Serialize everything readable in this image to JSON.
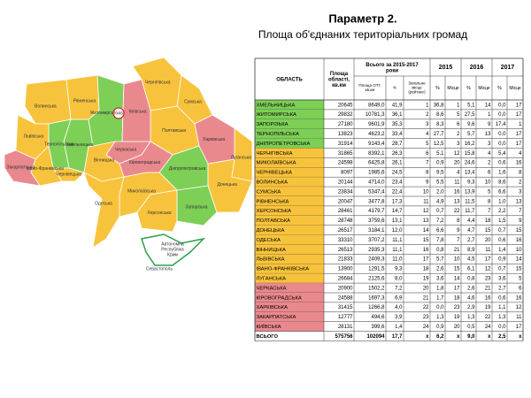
{
  "header": {
    "title": "Параметр 2.",
    "subtitle": "Площа об'єднаних територіальних громад"
  },
  "table": {
    "head": {
      "region": "ОБЛАСТЬ",
      "area": "Площа області, кв.км",
      "total": "Всього за 2015-2017 роки",
      "otg": "Площа ОТГ, кв.км",
      "pct": "%",
      "rank": "Загальне місце (рейтинг)",
      "years": [
        "2015",
        "2016",
        "2017"
      ],
      "year_pct": "%",
      "year_place": "Місце"
    },
    "rows": [
      {
        "color": "#7dcf56",
        "cells": [
          "ХМЕЛЬНИЦЬКА",
          "20645",
          "8649,0",
          "41,9",
          "1",
          "36,8",
          "1",
          "5,1",
          "14",
          "0,0",
          "17"
        ]
      },
      {
        "color": "#7dcf56",
        "cells": [
          "ЖИТОМИРСЬКА",
          "29832",
          "10781,3",
          "36,1",
          "2",
          "8,6",
          "5",
          "27,5",
          "1",
          "0,0",
          "17"
        ]
      },
      {
        "color": "#7dcf56",
        "cells": [
          "ЗАПОРІЗЬКА",
          "27180",
          "9601,9",
          "35,3",
          "3",
          "8,3",
          "6",
          "9,6",
          "9",
          "17,4",
          "1"
        ]
      },
      {
        "color": "#7dcf56",
        "cells": [
          "ТЕРНОПІЛЬСЬКА",
          "13823",
          "4623,2",
          "33,4",
          "4",
          "27,7",
          "2",
          "5,7",
          "13",
          "0,0",
          "17"
        ]
      },
      {
        "color": "#7dcf56",
        "cells": [
          "ДНІПРОПЕТРОВСЬКА",
          "31914",
          "9143,4",
          "28,7",
          "5",
          "12,5",
          "3",
          "16,2",
          "3",
          "0,0",
          "17"
        ]
      },
      {
        "color": "#f8c33c",
        "cells": [
          "ЧЕРНІГІВСЬКА",
          "31865",
          "8392,1",
          "26,3",
          "6",
          "5,1",
          "12",
          "15,8",
          "4",
          "5,4",
          "4"
        ]
      },
      {
        "color": "#f8c33c",
        "cells": [
          "МИКОЛАЇВСЬКА",
          "24598",
          "6425,8",
          "26,1",
          "7",
          "0,9",
          "20",
          "24,6",
          "2",
          "0,6",
          "16"
        ]
      },
      {
        "color": "#f8c33c",
        "cells": [
          "ЧЕРНІВЕЦЬКА",
          "8097",
          "1985,6",
          "24,5",
          "8",
          "9,5",
          "4",
          "13,4",
          "6",
          "1,6",
          "8"
        ]
      },
      {
        "color": "#f8c33c",
        "cells": [
          "ВОЛИНСЬКА",
          "20144",
          "4714,0",
          "23,4",
          "9",
          "5,5",
          "11",
          "9,3",
          "10",
          "8,6",
          "2"
        ]
      },
      {
        "color": "#f8c33c",
        "cells": [
          "СУМСЬКА",
          "23834",
          "5347,4",
          "22,4",
          "10",
          "2,0",
          "16",
          "13,9",
          "5",
          "6,6",
          "3"
        ]
      },
      {
        "color": "#f8c33c",
        "cells": [
          "РІВНЕНСЬКА",
          "20047",
          "3477,8",
          "17,3",
          "11",
          "4,9",
          "13",
          "11,5",
          "8",
          "1,0",
          "13"
        ]
      },
      {
        "color": "#f8c33c",
        "cells": [
          "ХЕРСОНСЬКА",
          "28461",
          "4179,7",
          "14,7",
          "12",
          "0,7",
          "22",
          "11,7",
          "7",
          "2,2",
          "7"
        ]
      },
      {
        "color": "#f8c33c",
        "cells": [
          "ПОЛТАВСЬКА",
          "28748",
          "3759,6",
          "13,1",
          "13",
          "7,2",
          "8",
          "4,4",
          "18",
          "1,5",
          "9"
        ]
      },
      {
        "color": "#f8c33c",
        "cells": [
          "ДОНЕЦЬКА",
          "26517",
          "3184,1",
          "12,0",
          "14",
          "6,6",
          "9",
          "4,7",
          "15",
          "0,7",
          "15"
        ]
      },
      {
        "color": "#f8c33c",
        "cells": [
          "ОДЕСЬКА",
          "33310",
          "3707,2",
          "11,1",
          "15",
          "7,8",
          "7",
          "2,7",
          "20",
          "0,6",
          "16"
        ]
      },
      {
        "color": "#f8c33c",
        "cells": [
          "ВІННИЦЬКА",
          "26513",
          "2935,3",
          "11,1",
          "16",
          "0,8",
          "21",
          "8,9",
          "11",
          "1,4",
          "10"
        ]
      },
      {
        "color": "#f8c33c",
        "cells": [
          "ЛЬВІВСЬКА",
          "21833",
          "2409,3",
          "11,0",
          "17",
          "5,7",
          "10",
          "4,5",
          "17",
          "0,9",
          "14"
        ]
      },
      {
        "color": "#f8c33c",
        "cells": [
          "ІВАНО-ФРАНКІВСЬКА",
          "13900",
          "1291,5",
          "9,3",
          "18",
          "2,6",
          "15",
          "6,1",
          "12",
          "0,7",
          "15"
        ]
      },
      {
        "color": "#f8c33c",
        "cells": [
          "ЛУГАНСЬКА",
          "26684",
          "2125,6",
          "8,0",
          "19",
          "3,6",
          "14",
          "0,8",
          "23",
          "3,6",
          "5"
        ]
      },
      {
        "color": "#e9898d",
        "cells": [
          "ЧЕРКАСЬКА",
          "20900",
          "1502,2",
          "7,2",
          "20",
          "1,8",
          "17",
          "2,6",
          "21",
          "2,7",
          "6"
        ]
      },
      {
        "color": "#e9898d",
        "cells": [
          "КІРОВОГРАДСЬКА",
          "24588",
          "1697,3",
          "6,9",
          "21",
          "1,7",
          "18",
          "4,6",
          "16",
          "0,6",
          "16"
        ]
      },
      {
        "color": "#e9898d",
        "cells": [
          "ХАРКІВСЬКА",
          "31415",
          "1266,8",
          "4,0",
          "22",
          "0,0",
          "23",
          "2,9",
          "19",
          "1,1",
          "12"
        ]
      },
      {
        "color": "#e9898d",
        "cells": [
          "ЗАКАРПАТСЬКА",
          "12777",
          "494,6",
          "3,9",
          "23",
          "1,3",
          "19",
          "1,3",
          "22",
          "1,3",
          "11"
        ]
      },
      {
        "color": "#e9898d",
        "cells": [
          "КИЇВСЬКА",
          "28131",
          "399,6",
          "1,4",
          "24",
          "0,9",
          "20",
          "0,5",
          "24",
          "0,0",
          "17"
        ]
      }
    ],
    "total": [
      "ВСЬОГО",
      "575756",
      "102094",
      "17,7",
      "x",
      "6,2",
      "x",
      "9,0",
      "x",
      "2,5",
      "x"
    ]
  },
  "map": {
    "labels": [
      "Хмельницька",
      "Житомирська",
      "Запорізька",
      "Тернопільська",
      "Дніпропетровська",
      "Чернігівська",
      "Миколаївська",
      "Чернівецька",
      "Волинська",
      "Сумська",
      "Рівненська",
      "Херсонська",
      "Полтавська",
      "Донецька",
      "Одеська",
      "Вінницька",
      "Львівська",
      "Івано-Франківська",
      "Луганська",
      "Черкаська",
      "Кіровоградська",
      "Харківська",
      "Закарпатська",
      "Київська"
    ],
    "city": "Київ",
    "crimea": [
      "Автономна",
      "Республіка",
      "Крим"
    ],
    "sevastopol": "Севастополь"
  }
}
